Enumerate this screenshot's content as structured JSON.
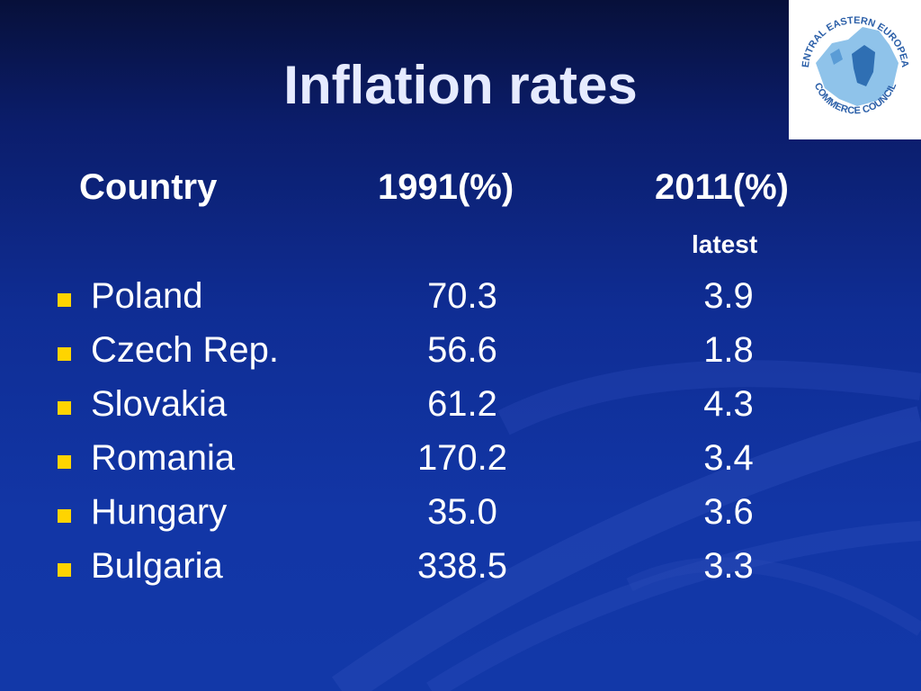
{
  "slide": {
    "title": "Inflation rates",
    "logo_text": [
      "CENTRAL EASTERN EUROPEAN",
      "COMMERCE COUNCIL"
    ]
  },
  "table": {
    "headers": {
      "country": "Country",
      "y1991": "1991(%)",
      "y2011": "2011(%)",
      "y2011_sub": "latest"
    },
    "rows": [
      {
        "country": "Poland",
        "y1991": "70.3",
        "y2011": "3.9"
      },
      {
        "country": "Czech Rep.",
        "y1991": "56.6",
        "y2011": "1.8"
      },
      {
        "country": "Slovakia",
        "y1991": "61.2",
        "y2011": "4.3"
      },
      {
        "country": "Romania",
        "y1991": "170.2",
        "y2011": "3.4"
      },
      {
        "country": "Hungary",
        "y1991": "35.0",
        "y2011": "3.6"
      },
      {
        "country": "Bulgaria",
        "y1991": "338.5",
        "y2011": "3.3"
      }
    ]
  },
  "colors": {
    "background": "#1238a8",
    "bullet": "#ffd400",
    "text": "#ffffff"
  }
}
